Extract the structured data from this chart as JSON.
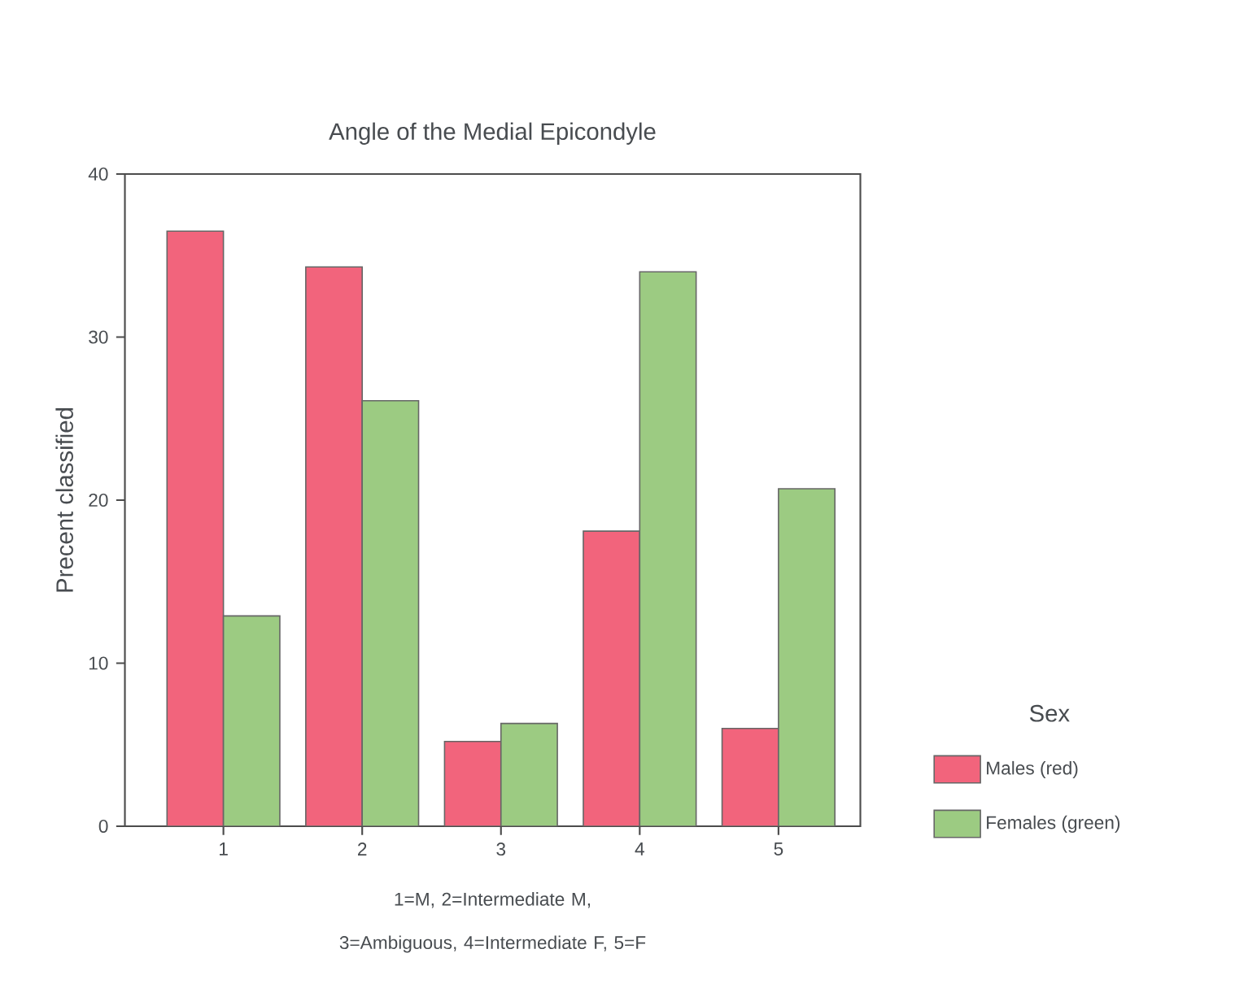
{
  "chart_data": {
    "type": "bar",
    "title": "Angle of the Medial Epicondyle",
    "xlabel": "1=M, 2=Intermediate M, 3=Ambiguous, 4=Intermediate F, 5=F",
    "ylabel": "Precent classified",
    "legend_title": "Sex",
    "legend": "right",
    "categories": [
      "1",
      "2",
      "3",
      "4",
      "5"
    ],
    "series": [
      {
        "name": "Males (red)",
        "color": "#f2647c",
        "values": [
          36.5,
          34.3,
          5.2,
          18.1,
          6.0
        ]
      },
      {
        "name": "Females (green)",
        "color": "#9ccb82",
        "values": [
          12.9,
          26.1,
          6.3,
          34.0,
          20.7
        ]
      }
    ],
    "ylim": [
      0,
      40
    ],
    "yticks": [
      0,
      10,
      20,
      30,
      40
    ]
  }
}
